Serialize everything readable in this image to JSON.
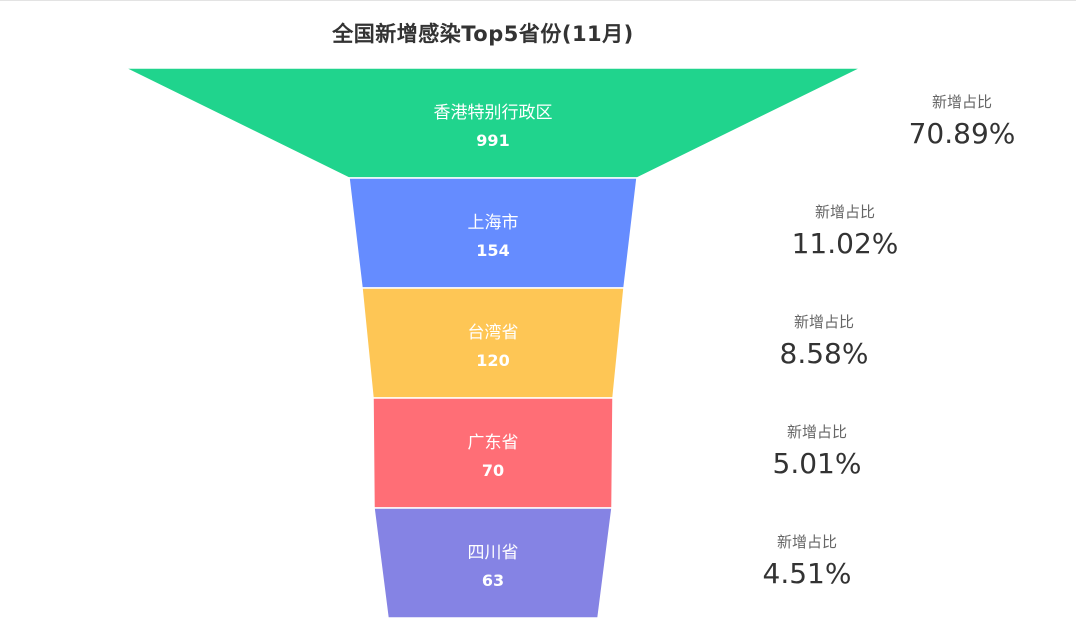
{
  "chart_data": {
    "type": "funnel",
    "title": "全国新增感染Top5省份(11月)",
    "categories": [
      "香港特别行政区",
      "上海市",
      "台湾省",
      "广东省",
      "四川省"
    ],
    "values": [
      991,
      154,
      120,
      70,
      63
    ],
    "share_label": "新增占比",
    "shares": [
      "70.89%",
      "11.02%",
      "8.58%",
      "5.01%",
      "4.51%"
    ],
    "colors": [
      "#20d48d",
      "#658cff",
      "#fec655",
      "#ff6e76",
      "#8583e4"
    ]
  }
}
